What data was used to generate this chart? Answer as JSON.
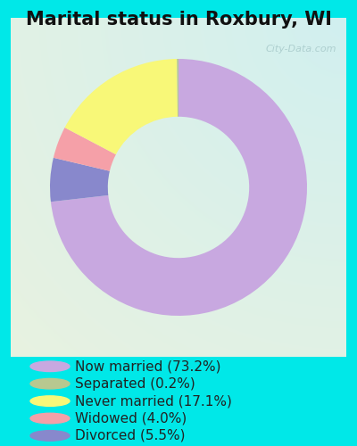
{
  "title": "Marital status in Roxbury, WI",
  "slices": [
    73.2,
    5.5,
    4.0,
    17.1,
    0.2
  ],
  "colors": [
    "#c8a8e0",
    "#8888cc",
    "#f5a0a8",
    "#f8f878",
    "#b8c890"
  ],
  "legend_labels": [
    "Now married (73.2%)",
    "Separated (0.2%)",
    "Never married (17.1%)",
    "Widowed (4.0%)",
    "Divorced (5.5%)"
  ],
  "legend_colors": [
    "#c8a8e0",
    "#b8c890",
    "#f8f878",
    "#f5a0a8",
    "#8888cc"
  ],
  "background_outer": "#00e8e8",
  "title_fontsize": 15,
  "legend_fontsize": 11,
  "watermark": "City-Data.com"
}
